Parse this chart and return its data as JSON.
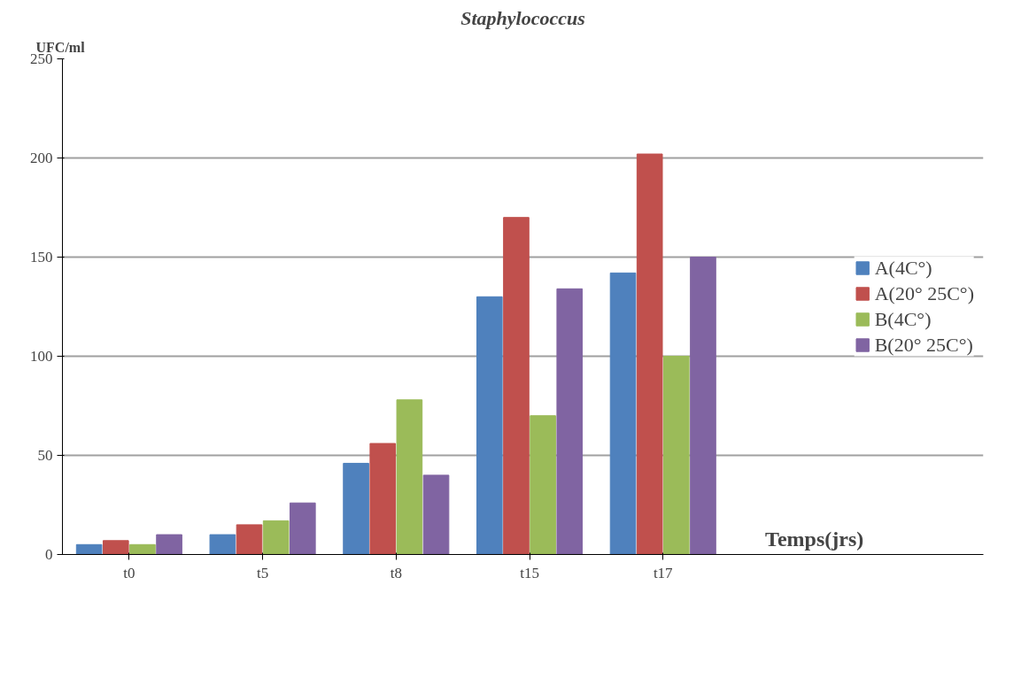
{
  "chart_data": {
    "type": "bar",
    "title": "Staphylococcus",
    "xlabel": "Temps(jrs)",
    "ylabel": "UFC/ml",
    "categories": [
      "t0",
      "t5",
      "t8",
      "t15",
      "t17"
    ],
    "series": [
      {
        "name": "A(4C°)",
        "color": "#4f81bd",
        "values": [
          5,
          10,
          46,
          130,
          142
        ]
      },
      {
        "name": "A(20° 25C°)",
        "color": "#c0504d",
        "values": [
          7,
          15,
          56,
          170,
          202
        ]
      },
      {
        "name": "B(4C°)",
        "color": "#9bbb59",
        "values": [
          5,
          17,
          78,
          70,
          100
        ]
      },
      {
        "name": "B(20° 25C°)",
        "color": "#8064a2",
        "values": [
          10,
          26,
          40,
          134,
          150
        ]
      }
    ],
    "ylim": [
      0,
      250
    ],
    "yticks": [
      0,
      50,
      100,
      150,
      200,
      250
    ],
    "grid": "y",
    "legend": "right"
  }
}
